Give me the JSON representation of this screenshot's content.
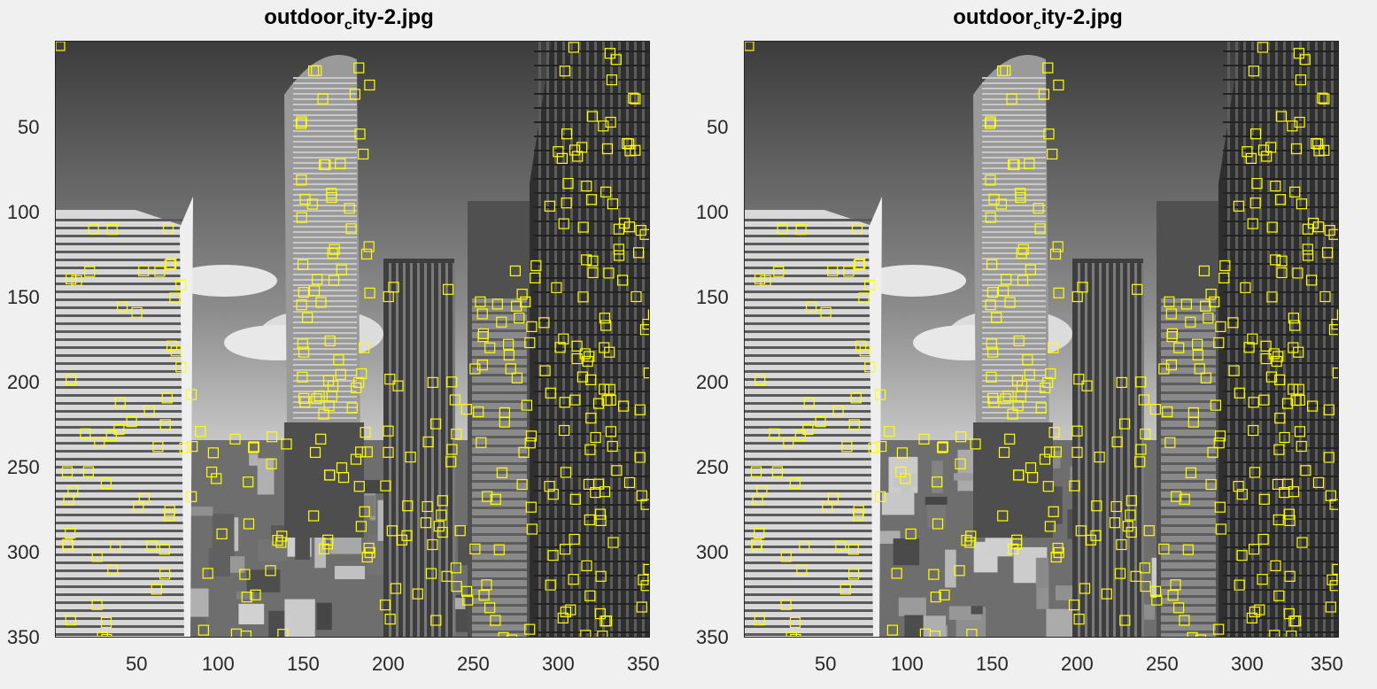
{
  "figure": {
    "panels": [
      {
        "title": {
          "prefix": "outdoor",
          "subscript": "c",
          "suffix": "ity-2.jpg"
        },
        "yticks": [
          "50",
          "100",
          "150",
          "200",
          "250",
          "300",
          "350"
        ],
        "xticks": [
          "50",
          "100",
          "150",
          "200",
          "250",
          "300",
          "350"
        ],
        "marker_color": "#ffff00"
      },
      {
        "title": {
          "prefix": "outdoor",
          "subscript": "c",
          "suffix": "ity-2.jpg"
        },
        "yticks": [
          "50",
          "100",
          "150",
          "200",
          "250",
          "300",
          "350"
        ],
        "xticks": [
          "50",
          "100",
          "150",
          "200",
          "250",
          "300",
          "350"
        ],
        "marker_color": "#ffff00"
      }
    ]
  },
  "image": {
    "description_icon": "grayscale-city-skyline-photo",
    "axis_range": {
      "x": [
        1,
        350
      ],
      "y": [
        1,
        350
      ]
    }
  }
}
